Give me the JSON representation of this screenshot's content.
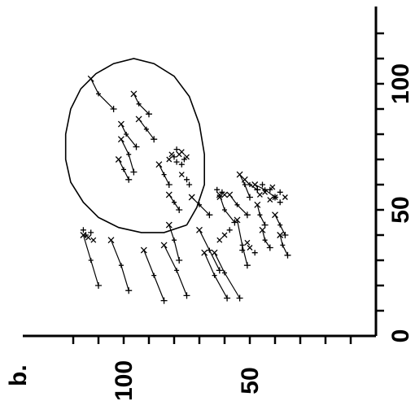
{
  "panel_label": "b.",
  "chart_data": {
    "type": "scatter",
    "title": "",
    "xlabel": "",
    "ylabel": "",
    "rotated": "90deg-counterclockwise",
    "xlim": [
      0,
      125
    ],
    "ylim": [
      0,
      125
    ],
    "x_ticks": [
      {
        "value": 0,
        "label": "0"
      },
      {
        "value": 50,
        "label": "50"
      },
      {
        "value": 100,
        "label": "100"
      }
    ],
    "y_ticks": [
      {
        "value": 50,
        "label": "50"
      },
      {
        "value": 100,
        "label": "100"
      }
    ],
    "grid": false,
    "outline": {
      "description": "egg-shaped boundary",
      "points": [
        [
          44,
          75
        ],
        [
          41,
          84
        ],
        [
          41,
          93
        ],
        [
          43,
          102
        ],
        [
          47,
          110
        ],
        [
          53,
          116
        ],
        [
          61,
          121
        ],
        [
          70,
          123
        ],
        [
          80,
          123
        ],
        [
          90,
          121
        ],
        [
          98,
          117
        ],
        [
          104,
          111
        ],
        [
          108,
          104
        ],
        [
          110,
          96
        ],
        [
          108,
          88
        ],
        [
          103,
          80
        ],
        [
          95,
          74
        ],
        [
          84,
          70
        ],
        [
          72,
          68
        ],
        [
          60,
          68
        ],
        [
          51,
          71
        ],
        [
          44,
          75
        ]
      ]
    },
    "trails": [
      [
        [
          15,
          54
        ],
        [
          25,
          60
        ],
        [
          33,
          64
        ]
      ],
      [
        [
          15,
          59
        ],
        [
          24,
          64
        ],
        [
          33,
          68
        ]
      ],
      [
        [
          16,
          75
        ],
        [
          26,
          79
        ],
        [
          36,
          84
        ]
      ],
      [
        [
          14,
          84
        ],
        [
          24,
          88
        ],
        [
          34,
          92
        ]
      ],
      [
        [
          18,
          98
        ],
        [
          28,
          101
        ],
        [
          38,
          105
        ]
      ],
      [
        [
          20,
          110
        ],
        [
          30,
          113
        ],
        [
          40,
          116
        ]
      ],
      [
        [
          28,
          51
        ],
        [
          36,
          53
        ],
        [
          46,
          55
        ]
      ],
      [
        [
          26,
          62
        ],
        [
          34,
          66
        ],
        [
          42,
          70
        ]
      ],
      [
        [
          30,
          78
        ],
        [
          38,
          80
        ],
        [
          44,
          82
        ]
      ],
      [
        [
          45,
          56
        ],
        [
          50,
          60
        ],
        [
          56,
          62
        ]
      ],
      [
        [
          48,
          66
        ],
        [
          52,
          70
        ],
        [
          55,
          73
        ]
      ],
      [
        [
          50,
          78
        ],
        [
          53,
          80
        ],
        [
          56,
          82
        ]
      ],
      [
        [
          48,
          51
        ],
        [
          52,
          55
        ],
        [
          56,
          58
        ]
      ],
      [
        [
          55,
          40
        ],
        [
          58,
          44
        ],
        [
          60,
          48
        ]
      ],
      [
        [
          58,
          47
        ],
        [
          60,
          50
        ],
        [
          62,
          52
        ]
      ],
      [
        [
          62,
          98
        ],
        [
          66,
          100
        ],
        [
          70,
          102
        ]
      ],
      [
        [
          75,
          95
        ],
        [
          80,
          99
        ],
        [
          84,
          101
        ]
      ],
      [
        [
          78,
          88
        ],
        [
          82,
          91
        ],
        [
          86,
          94
        ]
      ],
      [
        [
          88,
          90
        ],
        [
          92,
          94
        ],
        [
          96,
          96
        ]
      ],
      [
        [
          90,
          104
        ],
        [
          96,
          110
        ],
        [
          102,
          113
        ]
      ],
      [
        [
          65,
          96
        ],
        [
          72,
          98
        ],
        [
          78,
          101
        ]
      ],
      [
        [
          55,
          50
        ],
        [
          60,
          52
        ],
        [
          64,
          54
        ]
      ],
      [
        [
          44,
          44
        ],
        [
          48,
          46
        ],
        [
          52,
          47
        ]
      ],
      [
        [
          40,
          36
        ],
        [
          44,
          38
        ],
        [
          48,
          40
        ]
      ],
      [
        [
          35,
          42
        ],
        [
          38,
          44
        ],
        [
          42,
          45
        ]
      ],
      [
        [
          32,
          35
        ],
        [
          36,
          37
        ],
        [
          40,
          38
        ]
      ],
      [
        [
          60,
          82
        ],
        [
          64,
          84
        ],
        [
          68,
          86
        ]
      ]
    ],
    "cluster_points": [
      [
        71,
        80
      ],
      [
        72,
        78
      ],
      [
        70,
        76
      ],
      [
        73,
        77
      ],
      [
        69,
        79
      ],
      [
        72,
        81
      ],
      [
        74,
        79
      ],
      [
        70,
        82
      ],
      [
        68,
        77
      ],
      [
        71,
        75
      ],
      [
        41,
        113
      ],
      [
        39,
        114
      ],
      [
        42,
        116
      ],
      [
        38,
        112
      ],
      [
        40,
        115
      ],
      [
        57,
        44
      ],
      [
        58,
        42
      ],
      [
        56,
        46
      ],
      [
        60,
        45
      ],
      [
        59,
        41
      ],
      [
        58,
        47
      ],
      [
        55,
        40
      ],
      [
        53,
        38
      ],
      [
        55,
        36
      ],
      [
        57,
        38
      ],
      [
        54,
        42
      ],
      [
        57,
        61
      ],
      [
        55,
        62
      ],
      [
        58,
        63
      ],
      [
        56,
        60
      ],
      [
        62,
        75
      ],
      [
        64,
        77
      ],
      [
        60,
        74
      ],
      [
        35,
        50
      ],
      [
        33,
        48
      ],
      [
        37,
        51
      ],
      [
        34,
        53
      ],
      [
        40,
        60
      ],
      [
        42,
        58
      ],
      [
        38,
        62
      ]
    ]
  }
}
